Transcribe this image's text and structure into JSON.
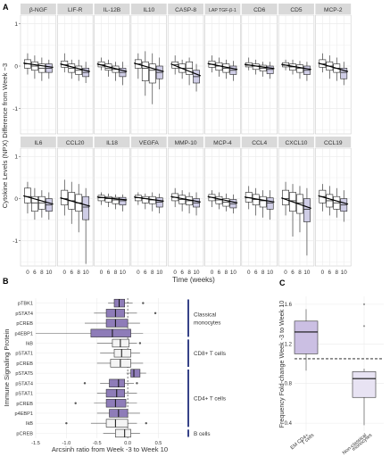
{
  "chart_data": [
    {
      "panel": "A",
      "type": "box",
      "ylabel": "Cytokine Levels (NPX) Difference from Week −3",
      "xlabel": "Time (weeks)",
      "x_categories": [
        "0",
        "6",
        "8",
        "10"
      ],
      "ylim": [
        -1.6,
        1.2
      ],
      "yticks": [
        -1,
        0,
        1
      ],
      "grid": true,
      "facets": [
        {
          "name": "β-NGF",
          "boxes": [
            [
              -0.2,
              -0.05,
              0.05,
              0.15,
              0.3
            ],
            [
              -0.3,
              -0.1,
              0.0,
              0.1,
              0.25
            ],
            [
              -0.35,
              -0.15,
              -0.05,
              0.05,
              0.2
            ],
            [
              -0.3,
              -0.15,
              -0.05,
              0.05,
              0.15
            ]
          ]
        },
        {
          "name": "LIF-R",
          "boxes": [
            [
              -0.15,
              -0.03,
              0.03,
              0.12,
              0.3
            ],
            [
              -0.3,
              -0.15,
              -0.05,
              0.05,
              0.15
            ],
            [
              -0.35,
              -0.2,
              -0.1,
              0.0,
              0.15
            ],
            [
              -0.4,
              -0.25,
              -0.15,
              -0.05,
              0.1
            ]
          ]
        },
        {
          "name": "IL-12B",
          "boxes": [
            [
              -0.1,
              -0.02,
              0.03,
              0.1,
              0.2
            ],
            [
              -0.25,
              -0.1,
              -0.05,
              0.05,
              0.15
            ],
            [
              -0.35,
              -0.15,
              -0.08,
              0.0,
              0.1
            ],
            [
              -0.45,
              -0.25,
              -0.15,
              -0.05,
              0.1
            ]
          ]
        },
        {
          "name": "IL10",
          "boxes": [
            [
              -0.3,
              -0.05,
              0.05,
              0.15,
              0.3
            ],
            [
              -0.7,
              -0.35,
              -0.05,
              0.1,
              0.35
            ],
            [
              -0.9,
              -0.4,
              -0.1,
              0.05,
              0.3
            ],
            [
              -0.55,
              -0.3,
              -0.15,
              0.0,
              0.2
            ]
          ]
        },
        {
          "name": "CASP-8",
          "boxes": [
            [
              -0.2,
              -0.05,
              0.03,
              0.1,
              0.25
            ],
            [
              -0.3,
              -0.15,
              -0.05,
              0.05,
              0.15
            ],
            [
              -0.45,
              -0.2,
              -0.05,
              0.1,
              0.2
            ],
            [
              -0.6,
              -0.4,
              -0.25,
              -0.1,
              0.05
            ]
          ]
        },
        {
          "name": "LAP TGF-β-1",
          "boxes": [
            [
              -0.15,
              -0.03,
              0.04,
              0.12,
              0.25
            ],
            [
              -0.25,
              -0.1,
              0.0,
              0.08,
              0.2
            ],
            [
              -0.3,
              -0.15,
              -0.05,
              0.05,
              0.15
            ],
            [
              -0.35,
              -0.2,
              -0.1,
              0.0,
              0.12
            ]
          ]
        },
        {
          "name": "CD6",
          "boxes": [
            [
              -0.1,
              -0.02,
              0.02,
              0.08,
              0.2
            ],
            [
              -0.2,
              -0.08,
              0.0,
              0.05,
              0.15
            ],
            [
              -0.25,
              -0.12,
              -0.05,
              0.02,
              0.1
            ],
            [
              -0.3,
              -0.18,
              -0.08,
              0.0,
              0.1
            ]
          ]
        },
        {
          "name": "CD5",
          "boxes": [
            [
              -0.1,
              -0.02,
              0.02,
              0.08,
              0.15
            ],
            [
              -0.2,
              -0.1,
              -0.02,
              0.05,
              0.15
            ],
            [
              -0.3,
              -0.15,
              -0.05,
              0.03,
              0.12
            ],
            [
              -0.35,
              -0.2,
              -0.1,
              0.0,
              0.1
            ]
          ]
        },
        {
          "name": "MCP-2",
          "boxes": [
            [
              -0.15,
              -0.03,
              0.05,
              0.15,
              0.3
            ],
            [
              -0.3,
              -0.1,
              0.0,
              0.1,
              0.25
            ],
            [
              -0.35,
              -0.15,
              -0.05,
              0.05,
              0.2
            ],
            [
              -0.45,
              -0.3,
              -0.15,
              -0.05,
              0.1
            ]
          ]
        },
        {
          "name": "IL6",
          "boxes": [
            [
              -0.35,
              -0.1,
              0.05,
              0.25,
              0.4
            ],
            [
              -0.5,
              -0.3,
              -0.1,
              0.05,
              0.25
            ],
            [
              -0.45,
              -0.25,
              -0.1,
              0.05,
              0.2
            ],
            [
              -0.5,
              -0.3,
              -0.15,
              0.0,
              0.15
            ]
          ]
        },
        {
          "name": "CCL20",
          "boxes": [
            [
              -0.4,
              -0.15,
              0.0,
              0.2,
              0.45
            ],
            [
              -0.6,
              -0.25,
              -0.05,
              0.15,
              0.4
            ],
            [
              -0.8,
              -0.3,
              -0.1,
              0.1,
              0.35
            ],
            [
              -1.55,
              -0.5,
              -0.2,
              0.05,
              0.25
            ]
          ]
        },
        {
          "name": "IL18",
          "boxes": [
            [
              -0.15,
              -0.05,
              0.02,
              0.08,
              0.15
            ],
            [
              -0.2,
              -0.08,
              0.0,
              0.05,
              0.12
            ],
            [
              -0.25,
              -0.12,
              -0.03,
              0.03,
              0.1
            ],
            [
              -0.3,
              -0.15,
              -0.05,
              0.03,
              0.1
            ]
          ]
        },
        {
          "name": "VEGFA",
          "boxes": [
            [
              -0.15,
              -0.05,
              0.02,
              0.08,
              0.15
            ],
            [
              -0.25,
              -0.1,
              0.0,
              0.05,
              0.12
            ],
            [
              -0.3,
              -0.12,
              -0.03,
              0.05,
              0.15
            ],
            [
              -0.35,
              -0.2,
              -0.08,
              0.02,
              0.12
            ]
          ]
        },
        {
          "name": "MMP-10",
          "boxes": [
            [
              -0.2,
              -0.05,
              0.03,
              0.12,
              0.25
            ],
            [
              -0.3,
              -0.12,
              -0.02,
              0.08,
              0.2
            ],
            [
              -0.35,
              -0.15,
              -0.05,
              0.05,
              0.15
            ],
            [
              -0.4,
              -0.2,
              -0.1,
              0.0,
              0.15
            ]
          ]
        },
        {
          "name": "MCP-4",
          "boxes": [
            [
              -0.2,
              -0.05,
              0.03,
              0.1,
              0.2
            ],
            [
              -0.25,
              -0.12,
              -0.03,
              0.05,
              0.15
            ],
            [
              -0.3,
              -0.18,
              -0.08,
              0.0,
              0.12
            ],
            [
              -0.35,
              -0.22,
              -0.12,
              -0.02,
              0.1
            ]
          ]
        },
        {
          "name": "CCL4",
          "boxes": [
            [
              -0.25,
              -0.08,
              0.02,
              0.15,
              0.3
            ],
            [
              -0.4,
              -0.15,
              -0.02,
              0.1,
              0.25
            ],
            [
              -0.45,
              -0.2,
              -0.05,
              0.05,
              0.2
            ],
            [
              -0.5,
              -0.25,
              -0.1,
              0.02,
              0.2
            ]
          ]
        },
        {
          "name": "CXCL10",
          "boxes": [
            [
              -0.4,
              -0.15,
              0.0,
              0.2,
              0.4
            ],
            [
              -0.9,
              -0.3,
              -0.05,
              0.15,
              0.35
            ],
            [
              -0.8,
              -0.35,
              -0.1,
              0.1,
              0.3
            ],
            [
              -1.35,
              -0.55,
              -0.25,
              0.0,
              0.25
            ]
          ]
        },
        {
          "name": "CCL19",
          "boxes": [
            [
              -0.3,
              -0.1,
              0.05,
              0.2,
              0.35
            ],
            [
              -0.4,
              -0.2,
              -0.05,
              0.1,
              0.3
            ],
            [
              -0.45,
              -0.25,
              -0.1,
              0.05,
              0.25
            ],
            [
              -0.55,
              -0.3,
              -0.15,
              0.0,
              0.2
            ]
          ]
        }
      ]
    },
    {
      "panel": "B",
      "type": "box",
      "orientation": "horizontal",
      "ylabel": "Immune Signaling Protein",
      "xlabel": "Arcsinh ratio from Week -3 to Week 10",
      "xlim": [
        -1.5,
        0.9
      ],
      "xticks": [
        -1.5,
        -1.0,
        -0.5,
        0.0,
        0.5
      ],
      "x_tick_labels": [
        "-1.5",
        "-1.0",
        "-0.5",
        "0.0",
        "0.5"
      ],
      "grid": true,
      "rows": [
        {
          "label": "pTBK1",
          "fill": "#8e7cb8",
          "box": [
            -0.32,
            -0.22,
            -0.14,
            -0.05,
            0.08
          ],
          "outliers": [
            0.25
          ]
        },
        {
          "label": "pSTAT4",
          "fill": "#8e7cb8",
          "box": [
            -0.55,
            -0.35,
            -0.2,
            -0.05,
            0.15
          ],
          "outliers": [
            0.45
          ]
        },
        {
          "label": "pCREB",
          "fill": "#8e7cb8",
          "box": [
            -0.7,
            -0.35,
            -0.2,
            0.0,
            0.2
          ],
          "outliers": []
        },
        {
          "label": "p4EBP1",
          "fill": "#8e7cb8",
          "box": [
            -1.5,
            -0.6,
            -0.25,
            0.05,
            0.25
          ],
          "outliers": []
        },
        {
          "label": "IkB",
          "fill": "#f4f4f4",
          "box": [
            -0.5,
            -0.25,
            -0.12,
            0.02,
            0.15
          ],
          "outliers": [
            0.2
          ]
        },
        {
          "label": "pSTAT1",
          "fill": "#f4f4f4",
          "box": [
            -0.45,
            -0.22,
            -0.1,
            0.05,
            0.2
          ],
          "outliers": []
        },
        {
          "label": "pCREB",
          "fill": "#f4f4f4",
          "box": [
            -0.5,
            -0.28,
            -0.12,
            0.05,
            0.25
          ],
          "outliers": []
        },
        {
          "label": "pSTAT5",
          "fill": "#8e7cb8",
          "box": [
            -0.02,
            0.05,
            0.1,
            0.2,
            0.3
          ],
          "outliers": []
        },
        {
          "label": "pSTAT4",
          "fill": "#8e7cb8",
          "box": [
            -0.45,
            -0.3,
            -0.15,
            -0.05,
            0.1
          ],
          "outliers": [
            -0.7,
            0.15
          ]
        },
        {
          "label": "pSTAT1",
          "fill": "#8e7cb8",
          "box": [
            -0.5,
            -0.35,
            -0.18,
            -0.05,
            0.15
          ],
          "outliers": []
        },
        {
          "label": "pCREB",
          "fill": "#8e7cb8",
          "box": [
            -0.55,
            -0.35,
            -0.2,
            -0.03,
            0.15
          ],
          "outliers": [
            -0.85
          ]
        },
        {
          "label": "p4EBP1",
          "fill": "#8e7cb8",
          "box": [
            -0.5,
            -0.3,
            -0.15,
            0.0,
            0.2
          ],
          "outliers": []
        },
        {
          "label": "IkB",
          "fill": "#f4f4f4",
          "box": [
            -0.6,
            -0.35,
            -0.2,
            0.0,
            0.15
          ],
          "outliers": [
            -1.0,
            0.3
          ]
        },
        {
          "label": "pCREB",
          "fill": "#f4f4f4",
          "box": [
            -0.4,
            -0.2,
            -0.05,
            0.05,
            0.2
          ],
          "outliers": []
        }
      ],
      "groups": [
        {
          "label_lines": [
            "Classical",
            "monocytes"
          ],
          "from_row": 0,
          "to_row": 3
        },
        {
          "label_lines": [
            "CD8+ T cells"
          ],
          "from_row": 4,
          "to_row": 6
        },
        {
          "label_lines": [
            "CD4+ T cells"
          ],
          "from_row": 7,
          "to_row": 12
        },
        {
          "label_lines": [
            "B cells"
          ],
          "from_row": 13,
          "to_row": 13
        }
      ],
      "accent_color": "#1f2d7a"
    },
    {
      "panel": "C",
      "type": "box",
      "ylabel": "Frequency Fold-change Week -3 to Week 10",
      "ylim": [
        0.32,
        1.68
      ],
      "yticks": [
        0.4,
        0.8,
        1.2,
        1.6
      ],
      "reference_line": 1.05,
      "grid": true,
      "categories": [
        {
          "label_lines": [
            "EM CD4+",
            "T cells"
          ],
          "fill": "#cbbfe3",
          "box": [
            0.93,
            1.1,
            1.32,
            1.43,
            1.55
          ],
          "outliers": []
        },
        {
          "label_lines": [
            "Non-classical",
            "monocytes"
          ],
          "fill": "#e8e3f3",
          "box": [
            0.38,
            0.66,
            0.85,
            0.92,
            0.95
          ],
          "outliers": [
            1.38,
            1.6
          ]
        }
      ]
    }
  ],
  "panel_letters": {
    "a": "A",
    "b": "B",
    "c": "C"
  },
  "colors": {
    "box_fill": "#ffffff",
    "week10_fill": "#cfcde6",
    "strip_bg": "#d9d9d9",
    "grid": "#ebebeb"
  }
}
